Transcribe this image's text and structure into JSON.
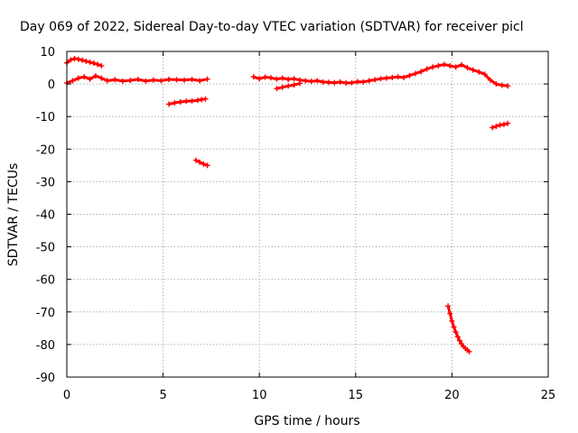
{
  "chart_data": {
    "type": "scatter",
    "title": "Day 069 of 2022, Sidereal Day-to-day VTEC variation (SDTVAR) for receiver picl",
    "xlabel": "GPS time / hours",
    "ylabel": "SDTVAR / TECUs",
    "xlim": [
      0,
      25
    ],
    "ylim": [
      -90,
      10
    ],
    "xticks": [
      0,
      5,
      10,
      15,
      20,
      25
    ],
    "yticks": [
      10,
      0,
      -10,
      -20,
      -30,
      -40,
      -50,
      -60,
      -70,
      -80,
      -90
    ],
    "grid": true,
    "colors": {
      "series": "#ff0000",
      "grid": "#a0a0a0",
      "axis": "#000000"
    },
    "series": [
      {
        "segments": [
          {
            "x": [
              0.0,
              0.2,
              0.4,
              0.6,
              0.8,
              1.0,
              1.2,
              1.4,
              1.6,
              1.8
            ],
            "y": [
              6.5,
              7.4,
              7.8,
              7.6,
              7.3,
              7.0,
              6.7,
              6.4,
              6.0,
              5.6
            ]
          },
          {
            "x": [
              0.0,
              0.3,
              0.6,
              0.9,
              1.2,
              1.5,
              1.8,
              2.1,
              2.5,
              2.9,
              3.3,
              3.7,
              4.1,
              4.5,
              4.9,
              5.3,
              5.7,
              6.1,
              6.5,
              6.9,
              7.3
            ],
            "y": [
              0.3,
              1.0,
              1.8,
              2.2,
              1.5,
              2.5,
              1.8,
              1.0,
              1.3,
              0.9,
              1.1,
              1.4,
              0.9,
              1.2,
              1.0,
              1.4,
              1.3,
              1.2,
              1.4,
              1.0,
              1.5
            ]
          },
          {
            "x": [
              5.3,
              5.6,
              5.9,
              6.2,
              6.5,
              6.8,
              7.0,
              7.2
            ],
            "y": [
              -6.2,
              -5.8,
              -5.5,
              -5.3,
              -5.2,
              -5.0,
              -4.8,
              -4.6
            ]
          },
          {
            "x": [
              6.7,
              6.9,
              7.1,
              7.3
            ],
            "y": [
              -23.4,
              -24.0,
              -24.6,
              -25.0
            ]
          },
          {
            "x": [
              9.7,
              10.0,
              10.3,
              10.6,
              10.9,
              11.2,
              11.5,
              11.8,
              12.1,
              12.4,
              12.7,
              13.0,
              13.3,
              13.6,
              13.9,
              14.2,
              14.5,
              14.8,
              15.1,
              15.4,
              15.7,
              16.0,
              16.3,
              16.6,
              16.9,
              17.2,
              17.5,
              17.8,
              18.1,
              18.4,
              18.7,
              19.0,
              19.3,
              19.6,
              19.9,
              20.2,
              20.5,
              20.8,
              21.1,
              21.4,
              21.7,
              22.0,
              22.3,
              22.6,
              22.9
            ],
            "y": [
              2.2,
              1.6,
              2.1,
              1.9,
              1.5,
              1.8,
              1.4,
              1.6,
              1.2,
              1.0,
              0.8,
              1.0,
              0.6,
              0.5,
              0.4,
              0.6,
              0.3,
              0.4,
              0.7,
              0.6,
              1.0,
              1.3,
              1.6,
              1.8,
              2.0,
              2.2,
              2.0,
              2.6,
              3.2,
              3.8,
              4.6,
              5.2,
              5.6,
              6.0,
              5.6,
              5.2,
              5.9,
              5.0,
              4.3,
              3.7,
              3.0,
              1.2,
              0.0,
              -0.4,
              -0.6
            ]
          },
          {
            "x": [
              10.9,
              11.2,
              11.5,
              11.8,
              12.1
            ],
            "y": [
              -1.4,
              -1.0,
              -0.6,
              -0.3,
              0.2
            ]
          },
          {
            "x": [
              22.1,
              22.3,
              22.5,
              22.7,
              22.9
            ],
            "y": [
              -13.4,
              -13.0,
              -12.6,
              -12.4,
              -12.1
            ]
          },
          {
            "x": [
              19.8,
              19.9,
              20.0,
              20.1,
              20.2,
              20.3,
              20.4,
              20.5,
              20.6,
              20.7,
              20.8,
              20.9
            ],
            "y": [
              -68.2,
              -70.5,
              -72.8,
              -74.6,
              -76.2,
              -77.6,
              -78.8,
              -79.8,
              -80.6,
              -81.2,
              -81.7,
              -82.2
            ]
          }
        ]
      }
    ]
  }
}
